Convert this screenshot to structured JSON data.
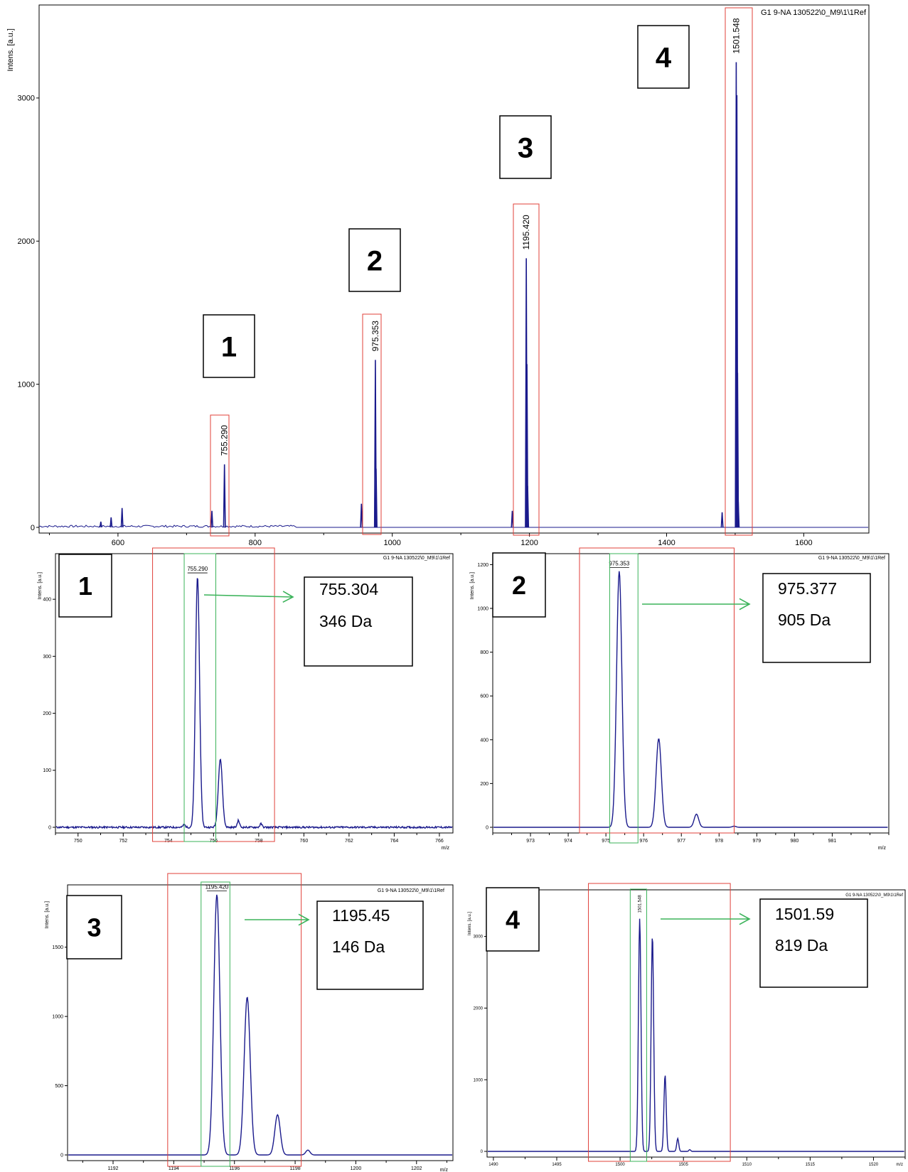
{
  "chart_data": [
    {
      "type": "line",
      "panel": "overview",
      "title": "G1 9-NA 130522\\0_M9\\1\\1Ref",
      "ylabel": "Intens. [a.u.]",
      "xlabel": "m/z",
      "xlim": [
        485,
        1695
      ],
      "ylim": [
        0,
        3650
      ],
      "xticks": [
        600,
        800,
        1000,
        1200,
        1400,
        1600
      ],
      "yticks": [
        0,
        1000,
        2000,
        3000
      ],
      "peaks": [
        {
          "x": 575,
          "y": 40
        },
        {
          "x": 590,
          "y": 70
        },
        {
          "x": 606,
          "y": 135
        },
        {
          "x": 737,
          "y": 115
        },
        {
          "x": 755.29,
          "y": 440
        },
        {
          "x": 955,
          "y": 165
        },
        {
          "x": 975.353,
          "y": 1170
        },
        {
          "x": 976.4,
          "y": 410
        },
        {
          "x": 1175,
          "y": 115
        },
        {
          "x": 1195.42,
          "y": 1880
        },
        {
          "x": 1196.4,
          "y": 1140
        },
        {
          "x": 1197.4,
          "y": 290
        },
        {
          "x": 1481,
          "y": 105
        },
        {
          "x": 1501.548,
          "y": 3250
        },
        {
          "x": 1502.5,
          "y": 3020
        },
        {
          "x": 1503.5,
          "y": 1080
        },
        {
          "x": 1504.5,
          "y": 180
        }
      ],
      "peak_labels": [
        {
          "x": 755.29,
          "text": "755.290"
        },
        {
          "x": 975.353,
          "text": "975.353"
        },
        {
          "x": 1195.42,
          "text": "1195.420"
        },
        {
          "x": 1501.548,
          "text": "1501.548"
        }
      ],
      "boxes": [
        {
          "label": "1"
        },
        {
          "label": "2"
        },
        {
          "label": "3"
        },
        {
          "label": "4"
        }
      ]
    },
    {
      "type": "line",
      "panel": "zoom-1",
      "box_label": "1",
      "title": "G1 9-NA 130522\\0_M9\\1\\1Ref",
      "ylabel": "Intens. [a.u.]",
      "xlabel": "m/z",
      "xlim": [
        749.0,
        766.6
      ],
      "ylim": [
        0,
        480
      ],
      "xticks": [
        750,
        752,
        754,
        756,
        758,
        760,
        762,
        764,
        766
      ],
      "yticks": [
        0,
        100,
        200,
        300,
        400
      ],
      "peaks": [
        {
          "x": 755.29,
          "y": 440,
          "w": 0.09
        },
        {
          "x": 756.3,
          "y": 120,
          "w": 0.09
        },
        {
          "x": 757.1,
          "y": 12,
          "w": 0.05
        },
        {
          "x": 758.1,
          "y": 6,
          "w": 0.05
        },
        {
          "x": 754.7,
          "y": 5,
          "w": 0.05
        }
      ],
      "peak_label": {
        "x": 755.29,
        "text": "755.290"
      },
      "red_box_x": [
        753.3,
        758.7
      ],
      "green_box_x": [
        754.7,
        756.1
      ],
      "callout": [
        "755.304",
        "346 Da"
      ]
    },
    {
      "type": "line",
      "panel": "zoom-2",
      "box_label": "2",
      "title": "G1 9-NA 130522\\0_M9\\1\\1Ref",
      "ylabel": "Intens. [a.u.]",
      "xlabel": "m/z",
      "xlim": [
        972.0,
        982.5
      ],
      "ylim": [
        0,
        1250
      ],
      "xticks": [
        973,
        974,
        975,
        976,
        977,
        978,
        979,
        980,
        981
      ],
      "yticks": [
        0,
        200,
        400,
        600,
        800,
        1000,
        1200
      ],
      "peaks": [
        {
          "x": 975.353,
          "y": 1170,
          "w": 0.07
        },
        {
          "x": 976.4,
          "y": 405,
          "w": 0.07
        },
        {
          "x": 977.4,
          "y": 60,
          "w": 0.06
        },
        {
          "x": 978.4,
          "y": 5,
          "w": 0.05
        }
      ],
      "peak_label": {
        "x": 975.353,
        "text": "975.353"
      },
      "red_box_x": [
        974.3,
        978.4
      ],
      "green_box_x": [
        975.1,
        975.85
      ],
      "callout": [
        "975.377",
        "905 Da"
      ]
    },
    {
      "type": "line",
      "panel": "zoom-3",
      "box_label": "3",
      "title": "G1 9-NA 130522\\0_M9\\1\\1Ref",
      "ylabel": "Intens. [a.u.]",
      "xlabel": "m/z",
      "xlim": [
        1190.5,
        1203.2
      ],
      "ylim": [
        0,
        1950
      ],
      "xticks": [
        1192,
        1194,
        1196,
        1198,
        1200,
        1202
      ],
      "yticks": [
        0,
        500,
        1000,
        1500
      ],
      "peaks": [
        {
          "x": 1195.42,
          "y": 1880,
          "w": 0.1
        },
        {
          "x": 1196.42,
          "y": 1140,
          "w": 0.1
        },
        {
          "x": 1197.42,
          "y": 290,
          "w": 0.09
        },
        {
          "x": 1198.42,
          "y": 35,
          "w": 0.07
        }
      ],
      "peak_label": {
        "x": 1195.42,
        "text": "1195.420"
      },
      "red_box_x": [
        1193.8,
        1198.2
      ],
      "green_box_x": [
        1194.9,
        1195.85
      ],
      "callout": [
        "1195.45",
        "146 Da"
      ]
    },
    {
      "type": "line",
      "panel": "zoom-4",
      "box_label": "4",
      "title": "G1 9-NA 130522\\0_M9\\1\\1Ref",
      "ylabel": "Intens. [a.u.]",
      "xlabel": "m/z",
      "xlim": [
        1489.5,
        1522.5
      ],
      "ylim": [
        0,
        3650
      ],
      "xticks": [
        1490,
        1495,
        1500,
        1505,
        1510,
        1515,
        1520
      ],
      "yticks": [
        0,
        1000,
        2000,
        3000
      ],
      "peaks": [
        {
          "x": 1501.548,
          "y": 3250,
          "w": 0.1
        },
        {
          "x": 1502.55,
          "y": 3020,
          "w": 0.1
        },
        {
          "x": 1503.55,
          "y": 1070,
          "w": 0.09
        },
        {
          "x": 1504.55,
          "y": 180,
          "w": 0.08
        },
        {
          "x": 1505.5,
          "y": 25,
          "w": 0.07
        }
      ],
      "peak_label": {
        "x": 1501.548,
        "text": "1501.548"
      },
      "red_box_x": [
        1497.5,
        1508.7
      ],
      "green_box_x": [
        1500.8,
        1502.1
      ],
      "callout": [
        "1501.59",
        "819 Da"
      ]
    }
  ]
}
